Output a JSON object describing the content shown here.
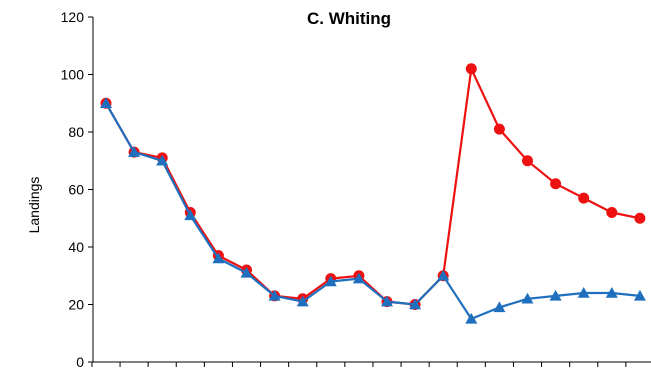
{
  "chart_data": {
    "type": "line",
    "title": "C. Whiting",
    "xlabel": "",
    "ylabel": "Landings",
    "x": [
      1,
      2,
      3,
      4,
      5,
      6,
      7,
      8,
      9,
      10,
      11,
      12,
      13,
      14,
      15,
      16,
      17,
      18,
      19,
      20
    ],
    "ylim": [
      0,
      120
    ],
    "yticks": [
      0,
      20,
      40,
      60,
      80,
      100,
      120
    ],
    "ytick_labels": [
      "0",
      "20",
      "40",
      "60",
      "80",
      "100",
      "120"
    ],
    "grid": false,
    "legend": "none",
    "series": [
      {
        "marker": "circle",
        "color": "#ee1111",
        "values": [
          90,
          73,
          71,
          52,
          37,
          32,
          23,
          22,
          29,
          30,
          21,
          20,
          30,
          102,
          81,
          70,
          62,
          57,
          52,
          50
        ]
      },
      {
        "marker": "triangle",
        "color": "#1f6fbf",
        "values": [
          90,
          73,
          70,
          51,
          36,
          31,
          23,
          21,
          28,
          29,
          21,
          20,
          30,
          15,
          19,
          22,
          23,
          24,
          24,
          23
        ]
      }
    ]
  }
}
